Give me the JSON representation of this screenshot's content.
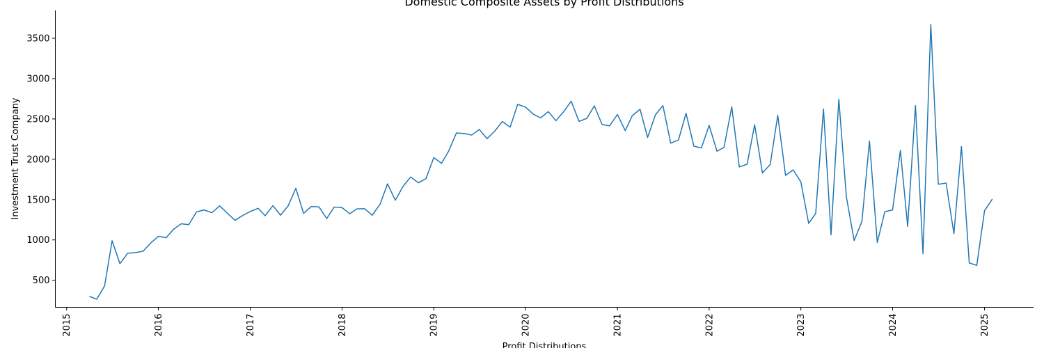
{
  "chart_data": {
    "type": "line",
    "title": "Domestic Composite Assets by Profit Distributions",
    "xlabel": "Profit Distributions",
    "ylabel": "Investment Trust Company",
    "x_tick_labels": [
      "2015",
      "2016",
      "2017",
      "2018",
      "2019",
      "2020",
      "2021",
      "2022",
      "2023",
      "2024",
      "2025"
    ],
    "y_ticks": [
      500,
      1000,
      1500,
      2000,
      2500,
      3000,
      3500
    ],
    "xlim": [
      "2014-11-17",
      "2025-07-15"
    ],
    "ylim": [
      165,
      3845
    ],
    "grid": false,
    "line_color": "#1f77b4",
    "series": [
      {
        "x": [
          "2015-04-01",
          "2015-05-01",
          "2015-06-01",
          "2015-07-01",
          "2015-08-01",
          "2015-09-01",
          "2015-10-01",
          "2015-11-01",
          "2015-12-01",
          "2016-01-01",
          "2016-02-01",
          "2016-03-01",
          "2016-04-01",
          "2016-05-01",
          "2016-06-01",
          "2016-07-01",
          "2016-08-01",
          "2016-09-01",
          "2016-10-01",
          "2016-11-01",
          "2016-12-01",
          "2017-01-01",
          "2017-02-01",
          "2017-03-01",
          "2017-04-01",
          "2017-05-01",
          "2017-06-01",
          "2017-07-01",
          "2017-08-01",
          "2017-09-01",
          "2017-10-01",
          "2017-11-01",
          "2017-12-01",
          "2018-01-01",
          "2018-02-01",
          "2018-03-01",
          "2018-04-01",
          "2018-05-01",
          "2018-06-01",
          "2018-07-01",
          "2018-08-01",
          "2018-09-01",
          "2018-10-01",
          "2018-11-01",
          "2018-12-01",
          "2019-01-01",
          "2019-02-01",
          "2019-03-01",
          "2019-04-01",
          "2019-05-01",
          "2019-06-01",
          "2019-07-01",
          "2019-08-01",
          "2019-09-01",
          "2019-10-01",
          "2019-11-01",
          "2019-12-01",
          "2020-01-01",
          "2020-02-01",
          "2020-03-01",
          "2020-04-01",
          "2020-05-01",
          "2020-06-01",
          "2020-07-01",
          "2020-08-01",
          "2020-09-01",
          "2020-10-01",
          "2020-11-01",
          "2020-12-01",
          "2021-01-01",
          "2021-02-01",
          "2021-03-01",
          "2021-04-01",
          "2021-05-01",
          "2021-06-01",
          "2021-07-01",
          "2021-08-01",
          "2021-09-01",
          "2021-10-01",
          "2021-11-01",
          "2021-12-01",
          "2022-01-01",
          "2022-02-01",
          "2022-03-01",
          "2022-04-01",
          "2022-05-01",
          "2022-06-01",
          "2022-07-01",
          "2022-08-01",
          "2022-09-01",
          "2022-10-01",
          "2022-11-01",
          "2022-12-01",
          "2023-01-01",
          "2023-02-01",
          "2023-03-01",
          "2023-04-01",
          "2023-05-01",
          "2023-06-01",
          "2023-07-01",
          "2023-08-01",
          "2023-09-01",
          "2023-10-01",
          "2023-11-01",
          "2023-12-01",
          "2024-01-01",
          "2024-02-01",
          "2024-03-01",
          "2024-04-01",
          "2024-05-01",
          "2024-06-01",
          "2024-07-01",
          "2024-08-01",
          "2024-09-01",
          "2024-10-01",
          "2024-11-01",
          "2024-12-01",
          "2025-01-01",
          "2025-02-01"
        ],
        "values": [
          300,
          265,
          430,
          990,
          705,
          835,
          842,
          860,
          960,
          1045,
          1028,
          1130,
          1200,
          1190,
          1348,
          1372,
          1338,
          1422,
          1333,
          1243,
          1302,
          1353,
          1392,
          1300,
          1425,
          1306,
          1425,
          1640,
          1330,
          1415,
          1410,
          1265,
          1408,
          1400,
          1325,
          1385,
          1387,
          1306,
          1440,
          1695,
          1492,
          1665,
          1780,
          1708,
          1760,
          2020,
          1950,
          2100,
          2325,
          2320,
          2300,
          2370,
          2255,
          2350,
          2468,
          2398,
          2680,
          2647,
          2560,
          2513,
          2590,
          2478,
          2590,
          2720,
          2470,
          2506,
          2662,
          2430,
          2415,
          2555,
          2355,
          2540,
          2620,
          2270,
          2550,
          2665,
          2200,
          2240,
          2570,
          2163,
          2140,
          2420,
          2100,
          2147,
          2650,
          1905,
          1938,
          2428,
          1830,
          1935,
          2545,
          1800,
          1868,
          1720,
          1205,
          1328,
          2623,
          1063,
          2745,
          1535,
          992,
          1230,
          2225,
          967,
          1350,
          1372,
          2110,
          1167,
          2665,
          828,
          3670,
          1690,
          1705,
          1077,
          2157,
          715,
          685,
          1363,
          1507
        ]
      }
    ]
  }
}
